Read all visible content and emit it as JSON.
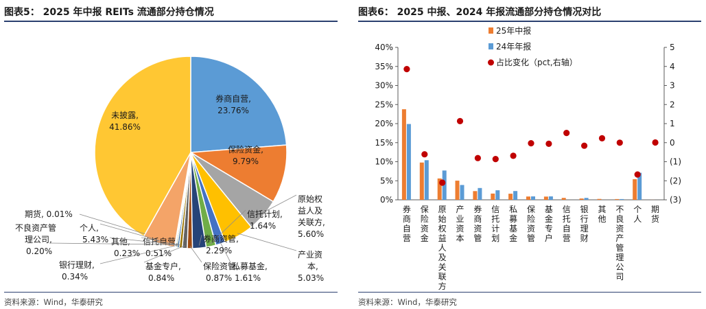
{
  "left_panel": {
    "title": "图表5： 2025 年中报 REITs 流通部分持仓情况",
    "source": "资料来源：Wind，华泰研究"
  },
  "right_panel": {
    "title": "图表6： 2025 中报、2024 年报流通部分持仓情况对比",
    "source": "资料来源：Wind，华泰研究"
  },
  "chart_data": [
    {
      "type": "pie",
      "slices": [
        {
          "label": "券商自营,",
          "value_text": "23.76%",
          "value": 23.76,
          "color": "#5b9bd5"
        },
        {
          "label": "保险资金,",
          "value_text": "9.79%",
          "value": 9.79,
          "color": "#ed7d31"
        },
        {
          "label": "原始权益人及关联方,",
          "value_text": "5.60%",
          "value": 5.6,
          "color": "#a5a5a5"
        },
        {
          "label": "产业资本,",
          "value_text": "5.03%",
          "value": 5.03,
          "color": "#ffc000"
        },
        {
          "label": "私募基金,",
          "value_text": "1.61%",
          "value": 1.61,
          "color": "#4472c4"
        },
        {
          "label": "信托计划,",
          "value_text": "1.64%",
          "value": 1.64,
          "color": "#70ad47"
        },
        {
          "label": "券商资管,",
          "value_text": "2.29%",
          "value": 2.29,
          "color": "#264478"
        },
        {
          "label": "保险资管,",
          "value_text": "0.87%",
          "value": 0.87,
          "color": "#9e480e"
        },
        {
          "label": "基金专户,",
          "value_text": "0.84%",
          "value": 0.84,
          "color": "#636363"
        },
        {
          "label": "信托自营,",
          "value_text": "0.51%",
          "value": 0.51,
          "color": "#997300"
        },
        {
          "label": "银行理财,",
          "value_text": "0.34%",
          "value": 0.34,
          "color": "#255e91"
        },
        {
          "label": "其他,",
          "value_text": "0.23%",
          "value": 0.23,
          "color": "#43682b"
        },
        {
          "label": "不良资产管理公司,",
          "value_text": "0.20%",
          "value": 0.2,
          "color": "#7cafdd"
        },
        {
          "label": "个人,",
          "value_text": "5.43%",
          "value": 5.43,
          "color": "#f4a468"
        },
        {
          "label": "期货,",
          "value_text": "0.01%",
          "value": 0.01,
          "color": "#b7b7b7"
        },
        {
          "label": "未披露,",
          "value_text": "41.86%",
          "value": 41.86,
          "color": "#ffc733"
        }
      ]
    },
    {
      "type": "bar",
      "categories": [
        "券商自营",
        "保险资金",
        "原始权益人及关联方",
        "产业资本",
        "券商资管",
        "信托计划",
        "私募基金",
        "保险资管",
        "基金专户",
        "信托自营",
        "银行理财",
        "其他",
        "不良资产管理公司",
        "个人",
        "期货"
      ],
      "series": [
        {
          "name": "25年中报",
          "color": "#ed7d31",
          "values": [
            23.76,
            9.79,
            5.6,
            5.03,
            2.29,
            1.64,
            1.61,
            0.87,
            0.84,
            0.51,
            0.34,
            0.23,
            0.2,
            5.43,
            0.01
          ]
        },
        {
          "name": "24年年报",
          "color": "#5b9bd5",
          "values": [
            19.9,
            10.4,
            7.7,
            3.9,
            3.1,
            2.5,
            2.3,
            0.9,
            0.9,
            0.0,
            0.5,
            0.0,
            0.2,
            7.1,
            0.0
          ]
        }
      ],
      "change_series": {
        "name": "占比变化（pct,右轴）",
        "color": "#c00000",
        "values": [
          3.86,
          -0.61,
          -2.1,
          1.13,
          -0.81,
          -0.86,
          -0.69,
          -0.03,
          -0.06,
          0.51,
          -0.16,
          0.23,
          -0.0,
          -1.67,
          0.01
        ]
      },
      "y_left": {
        "ticks": [
          "0%",
          "5%",
          "10%",
          "15%",
          "20%",
          "25%",
          "30%",
          "35%",
          "40%"
        ],
        "ylim": [
          0,
          40
        ]
      },
      "y_right": {
        "ticks": [
          "(3)",
          "(2)",
          "(1)",
          "0",
          "1",
          "2",
          "3",
          "4",
          "5"
        ],
        "ylim": [
          -3,
          5
        ]
      },
      "legend_position": "top-center"
    }
  ]
}
